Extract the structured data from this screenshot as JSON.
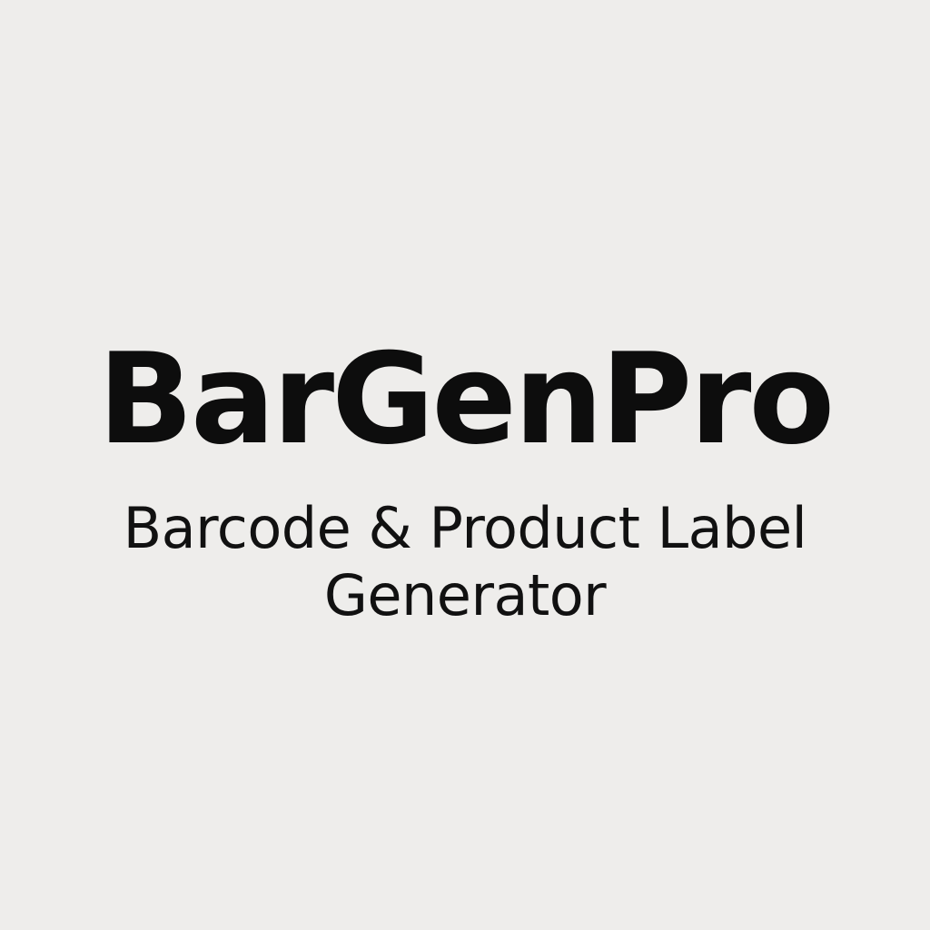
{
  "brand": {
    "name": "BarGenPro",
    "tagline_line1": "Barcode & Product Label",
    "tagline_line2": "Generator"
  },
  "colors": {
    "background": "#eeedeb",
    "text": "#0d0d0d"
  }
}
